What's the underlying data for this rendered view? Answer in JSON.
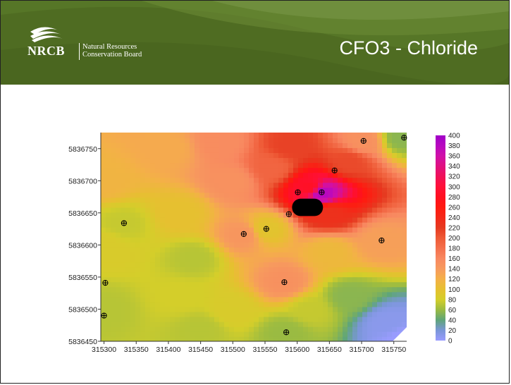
{
  "header": {
    "logo_acronym": "NRCB",
    "logo_name_line1": "Natural Resources",
    "logo_name_line2": "Conservation Board",
    "title": "CFO3 - Chloride"
  },
  "colors": {
    "banner_green": "#4f6c22",
    "max_purple": "#a000c8",
    "high_red": "#ff1a10",
    "mid_yellow": "#d4ce2a",
    "low_blue": "#9a9cff"
  },
  "chart_data": {
    "type": "heatmap",
    "title": "",
    "xlabel": "",
    "ylabel": "",
    "xlim": [
      315295,
      315770
    ],
    "ylim": [
      5836450,
      5836775
    ],
    "x_ticks": [
      315300,
      315350,
      315400,
      315450,
      315500,
      315550,
      315600,
      315650,
      315700,
      315750
    ],
    "y_ticks": [
      5836450,
      5836500,
      5836550,
      5836600,
      5836650,
      5836700,
      5836750
    ],
    "colorbar": {
      "min": 0,
      "max": 400,
      "ticks": [
        0,
        20,
        40,
        60,
        80,
        100,
        120,
        140,
        160,
        180,
        200,
        220,
        240,
        260,
        280,
        300,
        320,
        340,
        360,
        380,
        400
      ],
      "stops": [
        {
          "value": 0,
          "color": "#9a9cff"
        },
        {
          "value": 20,
          "color": "#7a96d8"
        },
        {
          "value": 40,
          "color": "#5fa57a"
        },
        {
          "value": 60,
          "color": "#9abb42"
        },
        {
          "value": 80,
          "color": "#d4ce2a"
        },
        {
          "value": 100,
          "color": "#e6c030"
        },
        {
          "value": 120,
          "color": "#f4b048"
        },
        {
          "value": 140,
          "color": "#f79a5e"
        },
        {
          "value": 160,
          "color": "#f88860"
        },
        {
          "value": 180,
          "color": "#f4704c"
        },
        {
          "value": 200,
          "color": "#ee5a36"
        },
        {
          "value": 220,
          "color": "#e63a20"
        },
        {
          "value": 240,
          "color": "#f42818"
        },
        {
          "value": 260,
          "color": "#ff1a10"
        },
        {
          "value": 280,
          "color": "#ff1020"
        },
        {
          "value": 300,
          "color": "#ff1038"
        },
        {
          "value": 320,
          "color": "#f01058"
        },
        {
          "value": 340,
          "color": "#e01080"
        },
        {
          "value": 360,
          "color": "#d010a8"
        },
        {
          "value": 380,
          "color": "#b808c0"
        },
        {
          "value": 400,
          "color": "#a000c8"
        }
      ]
    },
    "sample_points": [
      {
        "x": 315302,
        "y": 5836541
      },
      {
        "x": 315300,
        "y": 5836490
      },
      {
        "x": 315331,
        "y": 5836634
      },
      {
        "x": 315517,
        "y": 5836617
      },
      {
        "x": 315552,
        "y": 5836625
      },
      {
        "x": 315580,
        "y": 5836542
      },
      {
        "x": 315583,
        "y": 5836464
      },
      {
        "x": 315587,
        "y": 5836648
      },
      {
        "x": 315601,
        "y": 5836682
      },
      {
        "x": 315638,
        "y": 5836682
      },
      {
        "x": 315658,
        "y": 5836716
      },
      {
        "x": 315703,
        "y": 5836762
      },
      {
        "x": 315731,
        "y": 5836607
      },
      {
        "x": 315766,
        "y": 5836767
      }
    ],
    "concentration_field": [
      {
        "x": 315300,
        "y": 5836700,
        "value": 115
      },
      {
        "x": 315300,
        "y": 5836600,
        "value": 85
      },
      {
        "x": 315300,
        "y": 5836500,
        "value": 70
      },
      {
        "x": 315330,
        "y": 5836634,
        "value": 75
      },
      {
        "x": 315400,
        "y": 5836750,
        "value": 125
      },
      {
        "x": 315420,
        "y": 5836650,
        "value": 100
      },
      {
        "x": 315420,
        "y": 5836520,
        "value": 80
      },
      {
        "x": 315450,
        "y": 5836470,
        "value": 70
      },
      {
        "x": 315480,
        "y": 5836760,
        "value": 155
      },
      {
        "x": 315500,
        "y": 5836700,
        "value": 150
      },
      {
        "x": 315517,
        "y": 5836617,
        "value": 145
      },
      {
        "x": 315552,
        "y": 5836625,
        "value": 95
      },
      {
        "x": 315560,
        "y": 5836720,
        "value": 190
      },
      {
        "x": 315580,
        "y": 5836542,
        "value": 150
      },
      {
        "x": 315583,
        "y": 5836464,
        "value": 60
      },
      {
        "x": 315590,
        "y": 5836755,
        "value": 215
      },
      {
        "x": 315620,
        "y": 5836690,
        "value": 285
      },
      {
        "x": 315638,
        "y": 5836682,
        "value": 380
      },
      {
        "x": 315650,
        "y": 5836650,
        "value": 230
      },
      {
        "x": 315650,
        "y": 5836590,
        "value": 110
      },
      {
        "x": 315680,
        "y": 5836730,
        "value": 210
      },
      {
        "x": 315703,
        "y": 5836762,
        "value": 150
      },
      {
        "x": 315731,
        "y": 5836607,
        "value": 135
      },
      {
        "x": 315760,
        "y": 5836767,
        "value": 55
      },
      {
        "x": 315680,
        "y": 5836520,
        "value": 55
      },
      {
        "x": 315740,
        "y": 5836480,
        "value": 10
      },
      {
        "x": 315765,
        "y": 5836455,
        "value": 0
      },
      {
        "x": 315620,
        "y": 5836500,
        "value": 75
      },
      {
        "x": 315500,
        "y": 5836500,
        "value": 85
      },
      {
        "x": 315440,
        "y": 5836580,
        "value": 70
      }
    ]
  }
}
